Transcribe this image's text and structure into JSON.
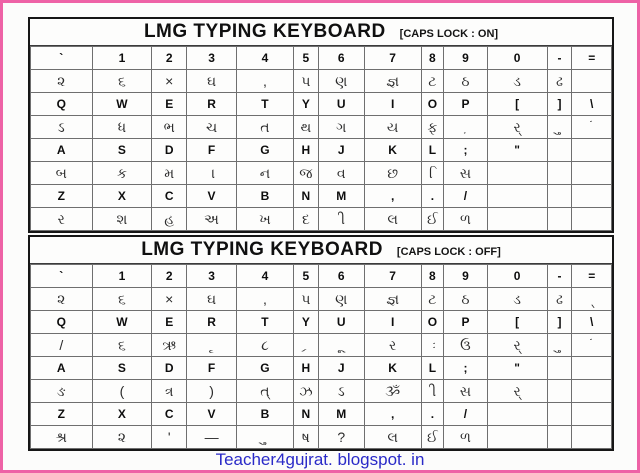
{
  "footer": {
    "site_text": "Teacher4gujrat. blogspot. in"
  },
  "frame_border_color": "#ee62a6",
  "footer_text_color": "#2a2ac8",
  "tables": [
    {
      "title": "LMG TYPING KEYBOARD",
      "status": "[CAPS LOCK : ON]",
      "rows": [
        {
          "keys": [
            "`",
            "1",
            "2",
            "3",
            "4",
            "5",
            "6",
            "7",
            "8",
            "9",
            "0",
            "-",
            "="
          ],
          "glyphs": [
            "૨",
            "૬",
            "×",
            "ઘ",
            ",",
            "પ",
            "ણ",
            "જ્ઞ",
            "ટ",
            "ઠ",
            "ડ",
            "ઢ",
            ""
          ]
        },
        {
          "keys": [
            "Q",
            "W",
            "E",
            "R",
            "T",
            "Y",
            "U",
            "I",
            "O",
            "P",
            "[",
            "]",
            "\\"
          ],
          "glyphs": [
            "ઽ",
            "ધ",
            "ભ",
            "ચ",
            "ત",
            "થ",
            "ગ",
            "ય",
            "ફ",
            " ઼",
            "ર્",
            " ુ",
            " ં"
          ]
        },
        {
          "keys": [
            "A",
            "S",
            "D",
            "F",
            "G",
            "H",
            "J",
            "K",
            "L",
            ";",
            "\"",
            "",
            ""
          ],
          "glyphs": [
            "બ",
            "ક",
            "મ",
            " ા",
            "ન",
            "જ",
            "વ",
            "છ",
            " િ",
            "સ",
            "",
            "",
            ""
          ]
        },
        {
          "keys": [
            "Z",
            "X",
            "C",
            "V",
            "B",
            "N",
            "M",
            ",",
            ".",
            "/",
            "",
            "",
            ""
          ],
          "glyphs": [
            "ર",
            "શ",
            "હ",
            "અ",
            "ખ",
            "દ",
            " ી",
            "લ",
            "ઈ",
            "ળ",
            "",
            "",
            ""
          ]
        }
      ]
    },
    {
      "title": "LMG TYPING KEYBOARD",
      "status": "[CAPS LOCK : OFF]",
      "rows": [
        {
          "keys": [
            "`",
            "1",
            "2",
            "3",
            "4",
            "5",
            "6",
            "7",
            "8",
            "9",
            "0",
            "-",
            "="
          ],
          "glyphs": [
            "૨",
            "૬",
            "×",
            "ઘ",
            ",",
            "પ",
            "ણ",
            "જ્ઞ",
            "ટ",
            "ઠ",
            "ડ",
            "ઢ",
            " ્"
          ]
        },
        {
          "keys": [
            "Q",
            "W",
            "E",
            "R",
            "T",
            "Y",
            "U",
            "I",
            "O",
            "P",
            "[",
            "]",
            "\\"
          ],
          "glyphs": [
            "/",
            "૬",
            "ઋ",
            " ૃ",
            "૮",
            " ્ર",
            " ૂ",
            "ર",
            " ઃ",
            "ઉ",
            "ર્",
            " ુ",
            " ં"
          ]
        },
        {
          "keys": [
            "A",
            "S",
            "D",
            "F",
            "G",
            "H",
            "J",
            "K",
            "L",
            ";",
            "\"",
            "",
            ""
          ],
          "glyphs": [
            "ઙ",
            "(",
            "ત્ર",
            ")",
            "ત્",
            "ઝ",
            "ઽ",
            "ૐ",
            " ી",
            "સ",
            "ર્",
            "",
            ""
          ]
        },
        {
          "keys": [
            "Z",
            "X",
            "C",
            "V",
            "B",
            "N",
            "M",
            ",",
            ".",
            "/",
            "",
            "",
            ""
          ],
          "glyphs": [
            "શ્ર",
            "૨",
            "'",
            "—",
            " ુ",
            "ષ",
            "?",
            "લ",
            "ઈ",
            "ળ",
            "",
            "",
            ""
          ]
        }
      ]
    }
  ],
  "layout_note": ""
}
